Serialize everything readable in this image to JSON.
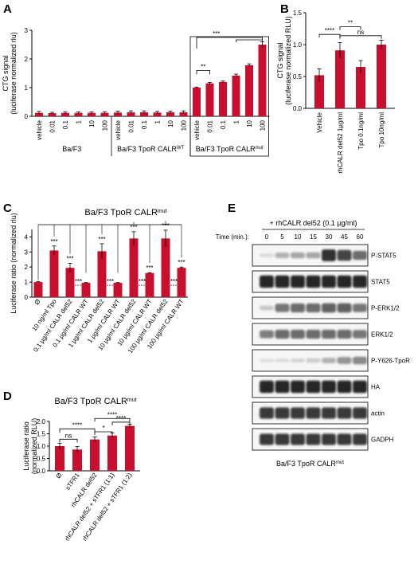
{
  "colors": {
    "bar": "#c8102e",
    "axis": "#000000",
    "blot_band": "#1a1a1a"
  },
  "panels": {
    "A": {
      "letter": "A"
    },
    "B": {
      "letter": "B"
    },
    "C": {
      "letter": "C"
    },
    "D": {
      "letter": "D"
    },
    "E": {
      "letter": "E"
    }
  },
  "chart_data": [
    {
      "panel": "A",
      "type": "bar",
      "ylabel": [
        "CTG signal",
        "(luciferase normalized rlu)"
      ],
      "ylim": [
        0,
        3
      ],
      "yticks": [
        0,
        1,
        2,
        3
      ],
      "categories": [
        "vehicle",
        "0.01",
        "0.1",
        "1",
        "10",
        "100",
        "vehicle",
        "0.01",
        "0.1",
        "1",
        "10",
        "100",
        "vehicle",
        "0.01",
        "0.1",
        "1",
        "10",
        "100"
      ],
      "values": [
        0.12,
        0.11,
        0.12,
        0.12,
        0.12,
        0.12,
        0.13,
        0.14,
        0.14,
        0.13,
        0.14,
        0.14,
        1.0,
        1.15,
        1.2,
        1.42,
        1.78,
        2.5
      ],
      "errors": [
        0.05,
        0.03,
        0.04,
        0.03,
        0.03,
        0.04,
        0.05,
        0.05,
        0.05,
        0.04,
        0.04,
        0.05,
        0.02,
        0.03,
        0.03,
        0.05,
        0.05,
        0.1
      ],
      "groups": [
        {
          "label": "Ba/F3",
          "sup": "",
          "range": [
            0,
            5
          ]
        },
        {
          "label": "Ba/F3 TpoR CALR",
          "sup": "WT",
          "range": [
            6,
            11
          ]
        },
        {
          "label": "Ba/F3 TpoR CALR",
          "sup": "mut",
          "range": [
            12,
            17
          ]
        }
      ],
      "box_range": [
        12,
        17
      ],
      "significance": [
        {
          "label": "**",
          "from": 12,
          "to": 13
        },
        {
          "label": "***",
          "from": 12,
          "to": 17
        }
      ]
    },
    {
      "panel": "B",
      "type": "bar",
      "ylabel": [
        "CTG signal",
        "(luciferase normalized RLU)"
      ],
      "ylim": [
        0,
        1.5
      ],
      "yticks": [
        "0.0",
        "0.5",
        "1.0",
        "1.5"
      ],
      "categories": [
        "Vehicle",
        "rhCALR del52 1µg/ml",
        "Tpo 0.1ng/ml",
        "Tpo 10ng/ml"
      ],
      "values": [
        0.52,
        0.91,
        0.65,
        1.0
      ],
      "errors": [
        0.1,
        0.12,
        0.1,
        0.07
      ],
      "significance": [
        {
          "label": "****",
          "from": 0,
          "to": 1
        },
        {
          "label": "**",
          "from": 1,
          "to": 2
        },
        {
          "label": "ns",
          "from": 1,
          "to": 3
        }
      ]
    },
    {
      "panel": "C",
      "type": "bar",
      "title": "Ba/F3 TpoR CALR",
      "title_sup": "mut",
      "ylabel": [
        "Luciferase ratio (normalized rlu)"
      ],
      "ylim": [
        0,
        4.5
      ],
      "yticks": [
        0,
        1,
        2,
        3,
        4
      ],
      "categories": [
        "Ø",
        "10 ng/ml Tpo",
        "0.1 µg/ml CALR del52",
        "0.1 µg/ml CALR WT",
        "1 µg/ml CALR del52",
        "1 µg/ml CALR WT",
        "10 µg/ml CALR del52",
        "10 µg/ml CALR WT",
        "100 µg/ml CALR del52",
        "100 µg/ml CALR WT"
      ],
      "values": [
        1.0,
        3.1,
        1.95,
        0.95,
        3.05,
        0.95,
        3.9,
        1.6,
        3.9,
        1.95
      ],
      "errors": [
        0.03,
        0.3,
        0.3,
        0.02,
        0.5,
        0.02,
        0.45,
        0.03,
        0.55,
        0.05
      ],
      "stars": [
        "",
        "***",
        "***",
        "",
        "***",
        "",
        "***",
        "***",
        "***",
        "***"
      ],
      "pair_stars": [
        {
          "label": "***",
          "from": 2,
          "to": 3
        },
        {
          "label": "***",
          "from": 4,
          "to": 5
        },
        {
          "label": "***",
          "from": 6,
          "to": 7
        },
        {
          "label": "***",
          "from": 8,
          "to": 9
        }
      ]
    },
    {
      "panel": "D",
      "type": "bar",
      "title": "Ba/F3 TpoR CALR",
      "title_sup": "mut",
      "ylabel": [
        "Luciferase ratio",
        "(normalized RLU)"
      ],
      "ylim": [
        0,
        2.0
      ],
      "yticks": [
        "0.0",
        "0.5",
        "1.0",
        "1.5",
        "2.0"
      ],
      "categories": [
        "Ø",
        "sTFR1",
        "rhCALR del52",
        "rhCALR del52 + sTFR1 (1:1)",
        "rhCALR del52 + sTFR1 (1:2)"
      ],
      "values": [
        1.0,
        0.86,
        1.27,
        1.43,
        1.82
      ],
      "errors": [
        0.12,
        0.12,
        0.1,
        0.1,
        0.07
      ],
      "significance": [
        {
          "label": "ns",
          "from": 0,
          "to": 1
        },
        {
          "label": "****",
          "from": 0,
          "to": 2
        },
        {
          "label": "*",
          "from": 2,
          "to": 3
        },
        {
          "label": "****",
          "from": 3,
          "to": 4
        },
        {
          "label": "****",
          "from": 2,
          "to": 4
        }
      ]
    },
    {
      "panel": "E",
      "type": "table",
      "treatment": "+ rhCALR del52 (0.1 µg/ml)",
      "time_label": "Time (min.):",
      "times": [
        "0",
        "5",
        "10",
        "15",
        "30",
        "45",
        "60"
      ],
      "rows": [
        {
          "label": "P-STAT5",
          "intensity": [
            0.05,
            0.25,
            0.3,
            0.3,
            0.9,
            0.8,
            0.6
          ]
        },
        {
          "label": "STAT5",
          "intensity": [
            0.95,
            0.95,
            0.95,
            0.95,
            0.95,
            0.95,
            0.95
          ]
        },
        {
          "label": "P-ERK1/2",
          "intensity": [
            0.15,
            0.55,
            0.6,
            0.6,
            0.65,
            0.65,
            0.55
          ]
        },
        {
          "label": "ERK1/2",
          "intensity": [
            0.5,
            0.6,
            0.6,
            0.6,
            0.6,
            0.6,
            0.55
          ]
        },
        {
          "label": "P-Y626-TpoR",
          "intensity": [
            0.03,
            0.05,
            0.08,
            0.12,
            0.25,
            0.4,
            0.45
          ]
        },
        {
          "label": "HA",
          "intensity": [
            0.95,
            0.95,
            0.95,
            0.95,
            0.95,
            0.95,
            0.95
          ]
        },
        {
          "label": "actin",
          "intensity": [
            0.85,
            0.85,
            0.85,
            0.85,
            0.85,
            0.85,
            0.85
          ]
        },
        {
          "label": "GADPH",
          "intensity": [
            0.85,
            0.85,
            0.85,
            0.85,
            0.85,
            0.85,
            0.85
          ]
        }
      ],
      "caption": "Ba/F3 TpoR CALR",
      "caption_sup": "mut"
    }
  ]
}
